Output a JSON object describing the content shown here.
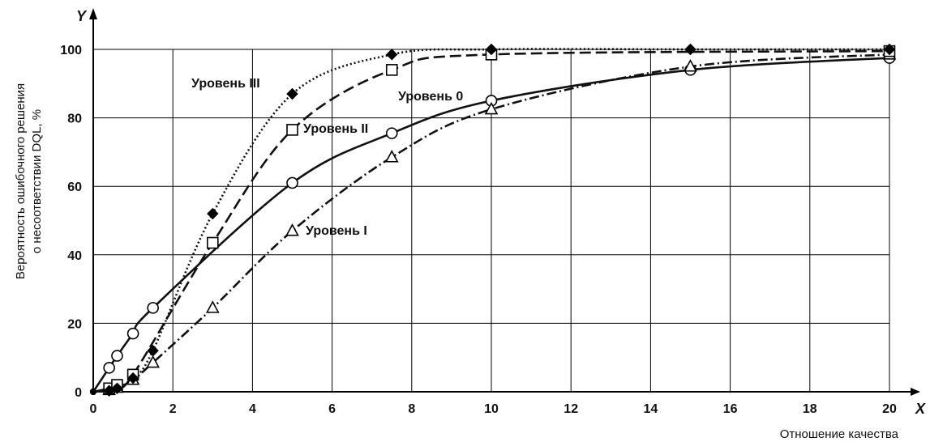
{
  "chart_data": {
    "type": "line",
    "xlabel": "Отношение качества",
    "ylabel_lines": [
      "Вероятность ошибочного решения",
      "о несоответствии DQL, %"
    ],
    "x_axis_letter": "X",
    "y_axis_letter": "Y",
    "xlim": [
      0,
      20
    ],
    "ylim": [
      0,
      100
    ],
    "x_ticks": [
      0,
      2,
      4,
      6,
      8,
      10,
      12,
      14,
      16,
      18,
      20
    ],
    "y_ticks": [
      0,
      20,
      40,
      60,
      80,
      100
    ],
    "grid": true,
    "series": [
      {
        "name": "Уровень 0",
        "marker": "circle-open",
        "line_style": "solid",
        "color": "#111111",
        "x": [
          0,
          0.4,
          0.6,
          1.0,
          1.5,
          5.0,
          7.5,
          10,
          15,
          20
        ],
        "y": [
          0,
          7,
          10.5,
          17,
          24.5,
          61,
          75.5,
          85,
          94,
          97.5
        ]
      },
      {
        "name": "Уровень I",
        "marker": "triangle-open",
        "line_style": "dash-dot",
        "color": "#111111",
        "x": [
          0,
          0.4,
          0.6,
          1.0,
          1.5,
          3.0,
          5.0,
          7.5,
          10,
          15,
          20
        ],
        "y": [
          0,
          0.5,
          1.2,
          3.5,
          8.5,
          24.5,
          47,
          68.5,
          82.5,
          95,
          98.5
        ]
      },
      {
        "name": "Уровень II",
        "marker": "square-open",
        "line_style": "dashed",
        "color": "#111111",
        "x": [
          0,
          0.4,
          0.6,
          1.0,
          3.0,
          5.0,
          7.5,
          10,
          20
        ],
        "y": [
          0,
          1,
          2,
          5,
          43.5,
          76.5,
          94,
          98.5,
          99.5
        ]
      },
      {
        "name": "Уровень III",
        "marker": "diamond-filled",
        "line_style": "dotted",
        "color": "#111111",
        "x": [
          0,
          0.4,
          0.6,
          1.0,
          1.5,
          3.0,
          5.0,
          7.5,
          10,
          15,
          20
        ],
        "y": [
          0,
          0.3,
          1,
          4,
          12,
          52,
          87,
          98.5,
          100,
          100,
          100
        ]
      }
    ],
    "annotations": [
      {
        "text": "Уровень III",
        "series": "Уровень III"
      },
      {
        "text": "Уровень II",
        "series": "Уровень II"
      },
      {
        "text": "Уровень 0",
        "series": "Уровень 0"
      },
      {
        "text": "Уровень I",
        "series": "Уровень I"
      }
    ]
  }
}
